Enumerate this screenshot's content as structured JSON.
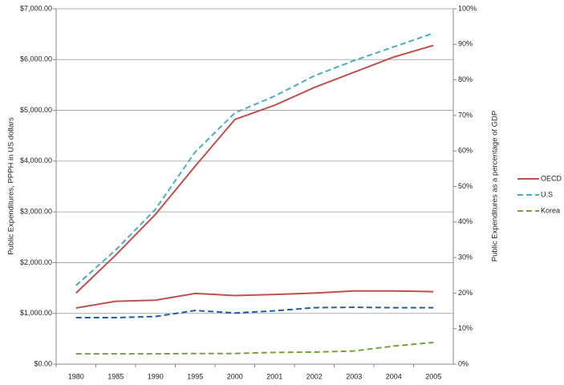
{
  "chart_data": {
    "type": "line",
    "y_axis_label": "Public Expenditures, PPPH in US dollars",
    "y2_axis_label": "Public Expenditures as a percentage of GDP",
    "categories": [
      "1980",
      "1985",
      "1990",
      "1995",
      "2000",
      "2001",
      "2002",
      "2003",
      "2004",
      "2005"
    ],
    "ylim": [
      0,
      7000
    ],
    "yticks": [
      {
        "value": 0,
        "label": "$0.00"
      },
      {
        "value": 1000,
        "label": "$1,000.00"
      },
      {
        "value": 2000,
        "label": "$2,000.00"
      },
      {
        "value": 3000,
        "label": "$3,000.00"
      },
      {
        "value": 4000,
        "label": "$4,000.00"
      },
      {
        "value": 5000,
        "label": "$5,000.00"
      },
      {
        "value": 6000,
        "label": "$6,000.00"
      },
      {
        "value": 7000,
        "label": "$7,000.00"
      }
    ],
    "y2lim": [
      0,
      100
    ],
    "y2ticks": [
      {
        "value": 0,
        "label": "0%"
      },
      {
        "value": 10,
        "label": "10%"
      },
      {
        "value": 20,
        "label": "20%"
      },
      {
        "value": 30,
        "label": "30%"
      },
      {
        "value": 40,
        "label": "40%"
      },
      {
        "value": 50,
        "label": "50%"
      },
      {
        "value": 60,
        "label": "60%"
      },
      {
        "value": 70,
        "label": "70%"
      },
      {
        "value": 80,
        "label": "80%"
      },
      {
        "value": 90,
        "label": "90%"
      },
      {
        "value": 100,
        "label": "100%"
      }
    ],
    "grid": true,
    "legend": "right",
    "series": [
      {
        "name": "OECD",
        "color": "#c0504d",
        "dashed": false,
        "values": [
          1400,
          2150,
          2950,
          3900,
          4820,
          5100,
          5450,
          5750,
          6050,
          6280
        ]
      },
      {
        "name": "U.S",
        "color": "#4bacc6",
        "dashed": true,
        "values": [
          1550,
          2250,
          3050,
          4180,
          4950,
          5280,
          5680,
          5980,
          6250,
          6520
        ]
      },
      {
        "name": "OECD",
        "color": "#c0504d",
        "dashed": false,
        "axis": "y2",
        "values": [
          15.8,
          17.7,
          18,
          19.9,
          19.3,
          19.6,
          20,
          20.6,
          20.6,
          20.4
        ]
      },
      {
        "name": "U.S",
        "color": "#1f5fa8",
        "dashed": true,
        "axis": "y2",
        "values": [
          13.1,
          13.1,
          13.4,
          15.1,
          14.4,
          15,
          15.9,
          16,
          15.9,
          15.9
        ]
      },
      {
        "name": "Korea",
        "color": "#77a13a",
        "dashed": true,
        "axis": "y2",
        "values": [
          2.9,
          2.9,
          2.9,
          3,
          3,
          3.3,
          3.4,
          3.7,
          5.1,
          6.1
        ]
      }
    ]
  }
}
